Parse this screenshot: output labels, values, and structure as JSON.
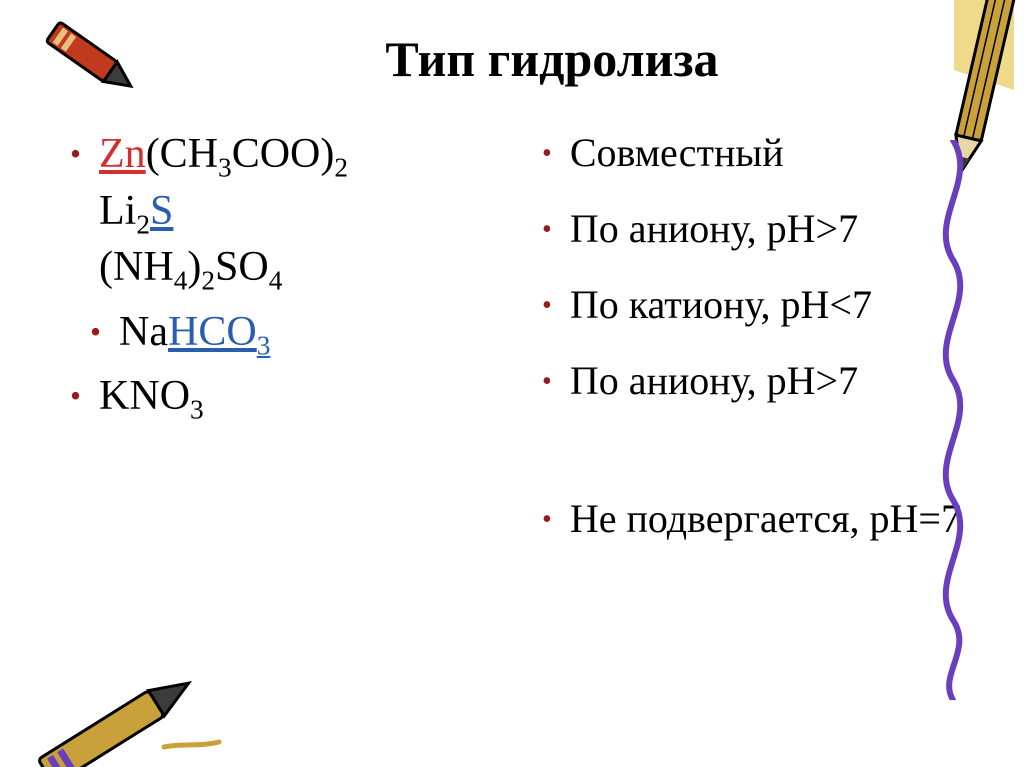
{
  "title": {
    "text": "Тип гидролиза",
    "fontsize": 50,
    "weight": "bold",
    "color": "#000000"
  },
  "left": {
    "fontsize": 42,
    "bullet_color": "#9a1b1b",
    "items": [
      {
        "lines": [
          {
            "segments": [
              {
                "text": "Zn",
                "color": "#d03030",
                "underline": true
              },
              {
                "text": "(CH",
                "color": "#000000"
              },
              {
                "text": "3",
                "sub": true
              },
              {
                "text": "COO)",
                "color": "#000000"
              },
              {
                "text": "2",
                "sub": true
              }
            ]
          },
          {
            "segments": [
              {
                "text": "Li",
                "color": "#000000"
              },
              {
                "text": "2",
                "sub": true
              },
              {
                "text": "S",
                "color": "#2a5db0",
                "underline": true
              }
            ]
          },
          {
            "segments": [
              {
                "text": "(NH",
                "color": "#000000"
              },
              {
                "text": "4",
                "sub": true
              },
              {
                "text": ")",
                "color": "#000000"
              },
              {
                "text": "2",
                "sub": true
              },
              {
                "text": "SO",
                "color": "#000000"
              },
              {
                "text": "4",
                "sub": true
              }
            ]
          }
        ]
      },
      {
        "indent": true,
        "lines": [
          {
            "segments": [
              {
                "text": "Na",
                "color": "#000000"
              },
              {
                "text": "HCO",
                "color": "#2a5db0",
                "underline": true
              },
              {
                "text": "3",
                "sub": true,
                "color": "#2a5db0",
                "underline": true
              }
            ]
          }
        ]
      },
      {
        "lines": [
          {
            "segments": [
              {
                "text": "KNO",
                "color": "#000000"
              },
              {
                "text": "3",
                "sub": true
              }
            ]
          }
        ]
      }
    ]
  },
  "right": {
    "fontsize": 40,
    "bullet_color": "#9a1b1b",
    "items": [
      {
        "text": "Совместный"
      },
      {
        "text": "По аниону, рН>7"
      },
      {
        "text": " По катиону,  рН<7"
      },
      {
        "text": "По аниону, рН>7"
      },
      {
        "text": "Не подвергается, рН=7",
        "gap_before": true
      }
    ]
  },
  "decor": {
    "crayon_tl": {
      "body": "#c23a1e",
      "tip": "#3b3b3b",
      "stroke": "#000000"
    },
    "crayon_tr": {
      "body": "#c9a13a",
      "tip": "#3b3b3b",
      "stroke": "#000000",
      "bgfill": "#efd98a"
    },
    "crayon_bl": {
      "body": "#c9a13a",
      "tip": "#3b3b3b",
      "stroke": "#000000"
    },
    "squiggle": {
      "color": "#6a3fbf",
      "width": 6
    }
  }
}
